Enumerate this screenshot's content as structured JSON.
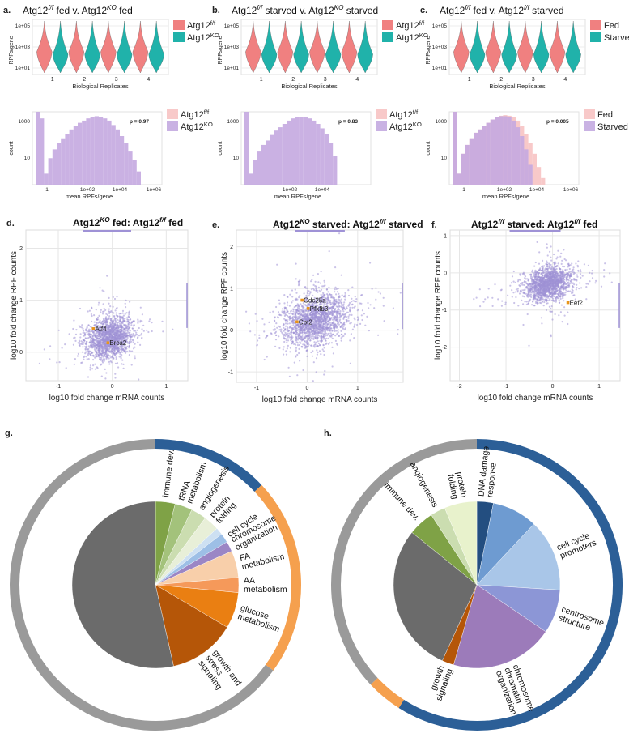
{
  "panels": {
    "a": {
      "letter": "a.",
      "title_html": "Atg12<sup>f/f</sup> fed v. Atg12<sup>KO</sup> fed"
    },
    "b": {
      "letter": "b.",
      "title_html": "Atg12<sup>f/f</sup> starved v. Atg12<sup>KO</sup> starved"
    },
    "c": {
      "letter": "c.",
      "title_html": "Atg12<sup>f/f</sup> fed v. Atg12<sup>f/f</sup> starved"
    },
    "d": {
      "letter": "d.",
      "title_html": "Atg12<sup>KO</sup> fed: Atg12<sup>f/f</sup> fed"
    },
    "e": {
      "letter": "e.",
      "title_html": "Atg12<sup>KO</sup> starved: Atg12<sup>f/f</sup> starved"
    },
    "f": {
      "letter": "f.",
      "title_html": "Atg12<sup>f/f</sup> starved: Atg12<sup>f/f</sup> fed"
    },
    "g": {
      "letter": "g."
    },
    "h": {
      "letter": "h."
    }
  },
  "colors": {
    "red": "#F08080",
    "teal": "#20B2AA",
    "pink": "#F8C9C9",
    "lav": "#C9B2E3",
    "purple": "#C4A9E0",
    "scatter": "#9F92D6",
    "orange": "#F5A04E",
    "blue": "#2C5F97",
    "gray": "#999999"
  },
  "chart_data": [
    {
      "panel": "a",
      "type": "violin",
      "ylabel": "RPFs/gene",
      "xlabel": "Biological Replicates",
      "yticks": [
        "1e+05",
        "1e+03",
        "1e+01"
      ],
      "categories": [
        "1",
        "2",
        "3",
        "4"
      ],
      "legend": [
        {
          "name": "Atg12",
          "sup": "f/f",
          "color": "#F08080"
        },
        {
          "name": "Atg12",
          "sup": "KO",
          "color": "#20B2AA"
        }
      ],
      "series": [
        {
          "name": "Atg12f/f"
        },
        {
          "name": "Atg12KO"
        }
      ]
    },
    {
      "panel": "b",
      "type": "violin",
      "ylabel": "RPFs/gene",
      "xlabel": "Biological Replicates",
      "yticks": [
        "1e+05",
        "1e+03",
        "1e+01"
      ],
      "categories": [
        "1",
        "2",
        "3",
        "4"
      ],
      "legend": [
        {
          "name": "Atg12",
          "sup": "f/f",
          "color": "#F08080"
        },
        {
          "name": "Atg12",
          "sup": "KO",
          "color": "#20B2AA"
        }
      ],
      "series": [
        {
          "name": "Atg12f/f"
        },
        {
          "name": "Atg12KO"
        }
      ]
    },
    {
      "panel": "c",
      "type": "violin",
      "ylabel": "RPFs/gene",
      "xlabel": "Biological Replicates",
      "yticks": [
        "1e+05",
        "1e+03",
        "1e+01"
      ],
      "categories": [
        "1",
        "2",
        "3",
        "4"
      ],
      "legend": [
        {
          "name": "Fed",
          "sup": "",
          "color": "#F08080"
        },
        {
          "name": "Starved",
          "sup": "",
          "color": "#20B2AA"
        }
      ],
      "series": [
        {
          "name": "Fed"
        },
        {
          "name": "Starved"
        }
      ]
    },
    {
      "panel": "a",
      "type": "bar",
      "subtype": "histogram",
      "ylabel": "count",
      "xlabel": "mean RPFs/gene",
      "yticks": [
        "1000",
        "10"
      ],
      "xticks": [
        "1",
        "1e+02",
        "1e+04",
        "1e+06"
      ],
      "annotation": "p = 0.97",
      "legend": [
        {
          "name": "Atg12",
          "sup": "f/f",
          "color": "#F8C9C9"
        },
        {
          "name": "Atg12",
          "sup": "KO",
          "color": "#C9B2E3"
        }
      ],
      "values": [
        5,
        3,
        0.5,
        1.2,
        1.6,
        1.9,
        2.1,
        2.3,
        2.5,
        2.65,
        2.8,
        2.9,
        3.0,
        3.05,
        3.1,
        3.08,
        3.0,
        2.9,
        2.7,
        2.5,
        2.2,
        1.9,
        1.5,
        1.1,
        0.6
      ]
    },
    {
      "panel": "b",
      "type": "bar",
      "subtype": "histogram",
      "ylabel": "count",
      "xlabel": "mean RPFs/gene",
      "yticks": [
        "1000",
        "10"
      ],
      "xticks": [
        "1e+02",
        "1e+04"
      ],
      "annotation": "p = 0.83",
      "legend": [
        {
          "name": "Atg12",
          "sup": "f/f",
          "color": "#F8C9C9"
        },
        {
          "name": "Atg12",
          "sup": "KO",
          "color": "#C9B2E3"
        }
      ],
      "values": [
        5,
        0.5,
        1.1,
        1.5,
        1.8,
        2.0,
        2.25,
        2.45,
        2.6,
        2.75,
        2.9,
        3.0,
        3.05,
        3.08,
        3.05,
        3.0,
        2.9,
        2.75,
        2.55,
        2.3,
        1.9,
        1.3
      ]
    },
    {
      "panel": "c",
      "type": "bar",
      "subtype": "histogram",
      "ylabel": "count",
      "xlabel": "mean RPFs/gene",
      "yticks": [
        "1000",
        "10"
      ],
      "xticks": [
        "1",
        "1e+02",
        "1e+04",
        "1e+06"
      ],
      "annotation": "p = 0.005",
      "legend": [
        {
          "name": "Fed",
          "sup": "",
          "color": "#F8C9C9"
        },
        {
          "name": "Starved",
          "sup": "",
          "color": "#C9B2E3"
        }
      ],
      "values": [
        5,
        0.5,
        1.4,
        1.8,
        2.1,
        2.35,
        2.5,
        2.65,
        2.8,
        2.95,
        3.05,
        3.1,
        3.1,
        3.05,
        2.9,
        2.6,
        2.2,
        1.6,
        0.9
      ],
      "values2": [
        5,
        0.5,
        1.4,
        1.8,
        2.1,
        2.35,
        2.5,
        2.65,
        2.8,
        2.95,
        3.05,
        3.12,
        3.15,
        3.12,
        3.05,
        2.9,
        2.65,
        2.3,
        1.9,
        1.4,
        0.8,
        0.3
      ]
    },
    {
      "panel": "d",
      "type": "scatter",
      "xlabel": "log10 fold change mRNA counts",
      "ylabel": "log10 fold change RPF counts",
      "xticks": [
        "-1",
        "0",
        "1"
      ],
      "yticks": [
        "2",
        "1",
        "0"
      ],
      "xlim": [
        -1.6,
        1.4
      ],
      "ylim": [
        -0.55,
        2.35
      ],
      "cloud": {
        "cx": -0.05,
        "cy": 0.28,
        "sx": 0.22,
        "sy": 0.2,
        "n": 1700
      },
      "labels": [
        {
          "text": "Atf4",
          "x": -0.35,
          "y": 0.45
        },
        {
          "text": "Brca2",
          "x": -0.08,
          "y": 0.18
        }
      ]
    },
    {
      "panel": "e",
      "type": "scatter",
      "xlabel": "log10 fold change mRNA counts",
      "ylabel": "log10 fold change RPF counts",
      "xticks": [
        "-1",
        "0",
        "1"
      ],
      "yticks": [
        "2",
        "1",
        "0",
        "-1"
      ],
      "xlim": [
        -1.4,
        1.9
      ],
      "ylim": [
        -1.25,
        2.4
      ],
      "cloud": {
        "cx": 0.15,
        "cy": 0.25,
        "sx": 0.33,
        "sy": 0.3,
        "n": 1900
      },
      "labels": [
        {
          "text": "Cdc25a",
          "x": -0.1,
          "y": 0.72
        },
        {
          "text": "Pfkfb3",
          "x": 0.02,
          "y": 0.52
        },
        {
          "text": "Cpt2",
          "x": -0.2,
          "y": 0.2
        }
      ]
    },
    {
      "panel": "f",
      "type": "scatter",
      "xlabel": "log10 fold change mRNA counts",
      "ylabel": "log10 fold change RPF counts",
      "xticks": [
        "-2",
        "-1",
        "0",
        "1"
      ],
      "yticks": [
        "1",
        "0",
        "-1",
        "-2"
      ],
      "xlim": [
        -2.2,
        1.45
      ],
      "ylim": [
        -2.9,
        1.15
      ],
      "cloud": {
        "cx": -0.1,
        "cy": -0.3,
        "sx": 0.25,
        "sy": 0.22,
        "n": 1700
      },
      "labels": [
        {
          "text": "Eef2",
          "x": 0.33,
          "y": -0.8
        }
      ]
    },
    {
      "panel": "g",
      "type": "pie",
      "start_angle": 90,
      "slices": [
        {
          "label": "immune dev.",
          "value": 3.8,
          "color": "#7FA246"
        },
        {
          "label": "tRNA metabolism",
          "value": 3.4,
          "color": "#A3C27B"
        },
        {
          "label": "angiogenesis",
          "value": 3.0,
          "color": "#CBDDB0"
        },
        {
          "label": "protein folding",
          "value": 3.0,
          "color": "#E8EFD8"
        },
        {
          "label": "",
          "value": 1.4,
          "color": "#CDE0F2"
        },
        {
          "label": "cell cycle",
          "value": 1.8,
          "color": "#9DBFE6"
        },
        {
          "label": "chromosome organization",
          "value": 2.0,
          "color": "#9B86C5"
        },
        {
          "label": "FA metabolism",
          "value": 5.2,
          "color": "#F8CFAA"
        },
        {
          "label": "AA metabolism",
          "value": 2.9,
          "color": "#F5995A"
        },
        {
          "label": "glucose metabolism",
          "value": 7.0,
          "color": "#EA7F12"
        },
        {
          "label": "growth and stress signaling",
          "value": 13.0,
          "color": "#B55608"
        },
        {
          "label": "",
          "value": 53.5,
          "color": "#6B6B6B"
        }
      ],
      "ring": [
        {
          "label": "",
          "value": 13,
          "color": "#2C5F97"
        },
        {
          "label": "",
          "value": 22,
          "color": "#F5A04E"
        },
        {
          "label": "",
          "value": 65,
          "color": "#9A9A9A"
        }
      ]
    },
    {
      "panel": "h",
      "type": "pie",
      "start_angle": 90,
      "slices": [
        {
          "label": "DNA damage response",
          "value": 3.2,
          "color": "#234E80"
        },
        {
          "label": "",
          "value": 8.8,
          "color": "#6E9BD1"
        },
        {
          "label": "cell cycle promoters",
          "value": 14.0,
          "color": "#A9C6E8"
        },
        {
          "label": "centrosome structure",
          "value": 8.5,
          "color": "#8C96D6"
        },
        {
          "label": "chromosome chromatin organization",
          "value": 20.0,
          "color": "#9C7BBA"
        },
        {
          "label": "growth signaling",
          "value": 2.3,
          "color": "#B55608"
        },
        {
          "label": "",
          "value": 29.0,
          "color": "#6B6B6B"
        },
        {
          "label": "immune dev.",
          "value": 5.0,
          "color": "#7FA246"
        },
        {
          "label": "angiogenesis",
          "value": 2.9,
          "color": "#CBDDB0"
        },
        {
          "label": "protein folding",
          "value": 6.3,
          "color": "#E8F2CC"
        }
      ],
      "ring": [
        {
          "label": "",
          "value": 59,
          "color": "#2C5F97"
        },
        {
          "label": "",
          "value": 4,
          "color": "#F5A04E"
        },
        {
          "label": "",
          "value": 37,
          "color": "#9A9A9A"
        }
      ]
    }
  ]
}
